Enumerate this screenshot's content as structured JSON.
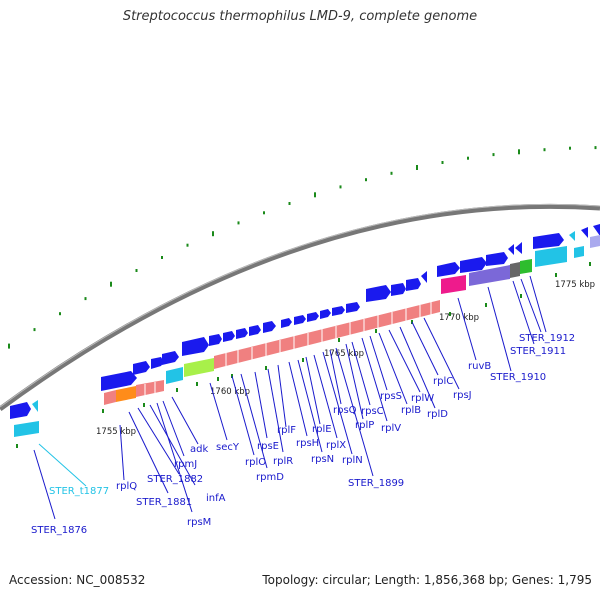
{
  "title": "Streptococcus thermophilus LMD-9, complete genome",
  "footer": {
    "accession": "Accession: NC_008532",
    "summary": "Topology: circular; Length: 1,856,368 bp; Genes: 1,795"
  },
  "colors": {
    "forward_gene": "#1a1aee",
    "gene_label": "#1a1acc",
    "trna_label": "#22c3e6",
    "ribosomal_block": "#f08080",
    "secY": "#a8f04a",
    "adk": "#ff8c1a",
    "ruvB": "#ee1b8c",
    "STER_1910": "#7b68d8",
    "backbone": "#777777"
  },
  "kbp_ticks": [
    "1755 kbp",
    "1760 kbp",
    "1765 kbp",
    "1770 kbp",
    "1775 kbp"
  ],
  "gene_labels": [
    "STER_1876",
    "STER_t1877",
    "rplQ",
    "STER_1881",
    "STER_1882",
    "infA",
    "rpsM",
    "rpmJ",
    "adk",
    "secY",
    "rplO",
    "rpmD",
    "rpsE",
    "rplR",
    "rplF",
    "rpsH",
    "rpsN",
    "rplE",
    "rplX",
    "rplN",
    "rpsQ",
    "STER_1899",
    "rplP",
    "rpsC",
    "rplV",
    "rpsS",
    "rplB",
    "rplW",
    "rplD",
    "rplC",
    "rpsJ",
    "ruvB",
    "STER_1910",
    "STER_1911",
    "STER_1912"
  ]
}
